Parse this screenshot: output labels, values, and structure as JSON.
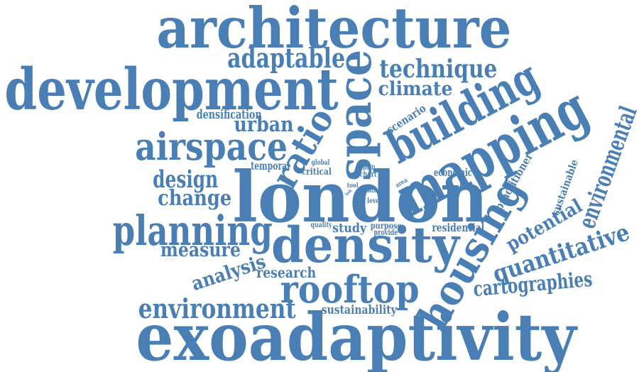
{
  "cloud": {
    "color": "#4a7fb5",
    "words": [
      {
        "name": "word-architecture",
        "text": "architecture"
      },
      {
        "name": "word-development",
        "text": "development"
      },
      {
        "name": "word-adaptable",
        "text": "adaptable"
      },
      {
        "name": "word-space",
        "text": "space"
      },
      {
        "name": "word-technique",
        "text": "technique"
      },
      {
        "name": "word-climate",
        "text": "climate"
      },
      {
        "name": "word-building",
        "text": "building"
      },
      {
        "name": "word-densification",
        "text": "densification"
      },
      {
        "name": "word-urban",
        "text": "urban"
      },
      {
        "name": "word-airspace",
        "text": "airspace"
      },
      {
        "name": "word-ratio",
        "text": "ratio"
      },
      {
        "name": "word-scenario",
        "text": "scenario"
      },
      {
        "name": "word-mapping",
        "text": "mapping"
      },
      {
        "name": "word-environmental",
        "text": "environmental"
      },
      {
        "name": "word-practitioner",
        "text": "practitioner"
      },
      {
        "name": "word-sustainable",
        "text": "sustainable"
      },
      {
        "name": "word-temporal",
        "text": "temporal"
      },
      {
        "name": "word-global",
        "text": "global"
      },
      {
        "name": "word-critical",
        "text": "critical"
      },
      {
        "name": "word-built",
        "text": "built"
      },
      {
        "name": "word-chart",
        "text": "chart"
      },
      {
        "name": "word-economic",
        "text": "economic"
      },
      {
        "name": "word-design",
        "text": "design"
      },
      {
        "name": "word-change",
        "text": "change"
      },
      {
        "name": "word-london",
        "text": "london"
      },
      {
        "name": "word-tool",
        "text": "tool"
      },
      {
        "name": "word-data",
        "text": "data"
      },
      {
        "name": "word-level",
        "text": "level"
      },
      {
        "name": "word-area",
        "text": "area"
      },
      {
        "name": "word-look",
        "text": "look"
      },
      {
        "name": "word-planning",
        "text": "planning"
      },
      {
        "name": "word-quality",
        "text": "quality"
      },
      {
        "name": "word-study",
        "text": "study"
      },
      {
        "name": "word-purpose",
        "text": "purpose"
      },
      {
        "name": "word-provide",
        "text": "provide"
      },
      {
        "name": "word-residential",
        "text": "residential"
      },
      {
        "name": "word-density",
        "text": "density"
      },
      {
        "name": "word-measure",
        "text": "measure"
      },
      {
        "name": "word-housing",
        "text": "housing"
      },
      {
        "name": "word-potential",
        "text": "potential"
      },
      {
        "name": "word-quantitative",
        "text": "quantitative"
      },
      {
        "name": "word-analysis",
        "text": "analysis"
      },
      {
        "name": "word-research",
        "text": "research"
      },
      {
        "name": "word-rooftop",
        "text": "rooftop"
      },
      {
        "name": "word-cartographies",
        "text": "cartographies"
      },
      {
        "name": "word-environment",
        "text": "environment"
      },
      {
        "name": "word-sustainability",
        "text": "sustainability"
      },
      {
        "name": "word-exoadaptivity",
        "text": "exoadaptivity"
      }
    ]
  }
}
